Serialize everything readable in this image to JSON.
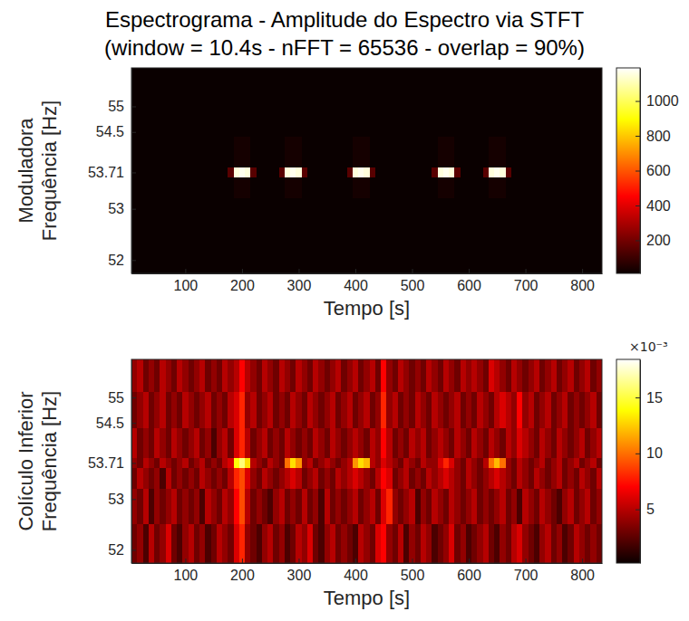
{
  "title": "Espectrograma - Amplitude do Espectro via STFT",
  "subtitle": "(window = 10.4s - nFFT = 65536 - overlap = 90%)",
  "chart_data": [
    {
      "type": "heatmap",
      "color": "hot",
      "ylabel": [
        "Moduladora",
        "Frequência [Hz]"
      ],
      "xlabel": "Tempo [s]",
      "xlim": [
        5,
        835
      ],
      "xticks": [
        100,
        200,
        300,
        400,
        500,
        600,
        700,
        800
      ],
      "ylim": [
        51.74,
        55.75
      ],
      "yticks": [
        52,
        53,
        53.71,
        54.5,
        55
      ],
      "x_edges": [
        5,
        15,
        25,
        35,
        45,
        55,
        65,
        75,
        85,
        95,
        105,
        115,
        125,
        135,
        145,
        155,
        165,
        175,
        185,
        195,
        205,
        215,
        225,
        235,
        245,
        255,
        265,
        275,
        285,
        295,
        305,
        315,
        325,
        335,
        345,
        355,
        365,
        375,
        385,
        395,
        405,
        415,
        425,
        435,
        445,
        455,
        465,
        475,
        485,
        495,
        505,
        515,
        525,
        535,
        545,
        555,
        565,
        575,
        585,
        595,
        605,
        615,
        625,
        635,
        645,
        655,
        665,
        675,
        685,
        695,
        705,
        715,
        725,
        735,
        745,
        755,
        765,
        775,
        785,
        795,
        805,
        815,
        825,
        835
      ],
      "y_edges": [
        51.74,
        52.5,
        53.2,
        53.62,
        53.8,
        54.4,
        55.1,
        55.75
      ],
      "z": [
        [
          0,
          0,
          0,
          0,
          0,
          0,
          0,
          0,
          0,
          0,
          0,
          0,
          0,
          0,
          0,
          0,
          0,
          0,
          0,
          0,
          0,
          0,
          0,
          0,
          0,
          0,
          0,
          0,
          0,
          0,
          0,
          0,
          0,
          0,
          0,
          0,
          0,
          0,
          0,
          0,
          0,
          0,
          0,
          0,
          0,
          0,
          0,
          0,
          0,
          0,
          0,
          0,
          0,
          0,
          0,
          0,
          0,
          0,
          0,
          0,
          0,
          0,
          0,
          0,
          0,
          0,
          0,
          0,
          0,
          0,
          0,
          0,
          0,
          0,
          0,
          0,
          0,
          0,
          0,
          0,
          0,
          0,
          0
        ],
        [
          0,
          0,
          0,
          0,
          0,
          0,
          0,
          0,
          0,
          0,
          0,
          0,
          0,
          0,
          0,
          0,
          0,
          0,
          0,
          0,
          0,
          0,
          0,
          0,
          0,
          0,
          0,
          0,
          0,
          0,
          0,
          0,
          0,
          0,
          0,
          0,
          0,
          0,
          0,
          0,
          0,
          0,
          0,
          0,
          0,
          0,
          0,
          0,
          0,
          0,
          0,
          0,
          0,
          0,
          0,
          0,
          0,
          0,
          0,
          0,
          0,
          0,
          0,
          0,
          0,
          0,
          0,
          0,
          0,
          0,
          0,
          0,
          0,
          0,
          0,
          0,
          0,
          0,
          0,
          0,
          0,
          0,
          0
        ],
        [
          0,
          0,
          0,
          0,
          0,
          0,
          0,
          0,
          0,
          0,
          0,
          0,
          0,
          0,
          0,
          0,
          0,
          0,
          30,
          30,
          30,
          0,
          0,
          0,
          0,
          0,
          0,
          30,
          30,
          30,
          0,
          0,
          0,
          0,
          0,
          0,
          0,
          0,
          0,
          30,
          30,
          30,
          0,
          0,
          0,
          0,
          0,
          0,
          0,
          0,
          0,
          0,
          0,
          0,
          30,
          30,
          30,
          0,
          0,
          0,
          0,
          0,
          0,
          30,
          30,
          30,
          0,
          0,
          0,
          0,
          0,
          0,
          0,
          0,
          0,
          0,
          0,
          0,
          0,
          0,
          0,
          0,
          0
        ],
        [
          0,
          0,
          0,
          0,
          0,
          0,
          0,
          0,
          0,
          0,
          0,
          0,
          0,
          0,
          0,
          0,
          0,
          150,
          1150,
          1170,
          1150,
          150,
          0,
          0,
          0,
          0,
          150,
          1150,
          1170,
          1150,
          150,
          0,
          0,
          0,
          0,
          0,
          0,
          0,
          150,
          1150,
          1170,
          1150,
          150,
          0,
          0,
          0,
          0,
          0,
          0,
          0,
          0,
          0,
          0,
          150,
          1150,
          1170,
          1150,
          150,
          0,
          0,
          0,
          0,
          150,
          1150,
          1170,
          1150,
          150,
          0,
          0,
          0,
          0,
          0,
          0,
          0,
          0,
          0,
          0,
          0,
          0,
          0,
          0,
          0,
          0
        ],
        [
          0,
          0,
          0,
          0,
          0,
          0,
          0,
          0,
          0,
          0,
          0,
          0,
          0,
          0,
          0,
          0,
          0,
          0,
          30,
          30,
          30,
          0,
          0,
          0,
          0,
          0,
          0,
          30,
          30,
          30,
          0,
          0,
          0,
          0,
          0,
          0,
          0,
          0,
          0,
          30,
          30,
          30,
          0,
          0,
          0,
          0,
          0,
          0,
          0,
          0,
          0,
          0,
          0,
          0,
          30,
          30,
          30,
          0,
          0,
          0,
          0,
          0,
          0,
          30,
          30,
          30,
          0,
          0,
          0,
          0,
          0,
          0,
          0,
          0,
          0,
          0,
          0,
          0,
          0,
          0,
          0,
          0,
          0
        ],
        [
          0,
          0,
          0,
          0,
          0,
          0,
          0,
          0,
          0,
          0,
          0,
          0,
          0,
          0,
          0,
          0,
          0,
          0,
          0,
          0,
          0,
          0,
          0,
          0,
          0,
          0,
          0,
          0,
          0,
          0,
          0,
          0,
          0,
          0,
          0,
          0,
          0,
          0,
          0,
          0,
          0,
          0,
          0,
          0,
          0,
          0,
          0,
          0,
          0,
          0,
          0,
          0,
          0,
          0,
          0,
          0,
          0,
          0,
          0,
          0,
          0,
          0,
          0,
          0,
          0,
          0,
          0,
          0,
          0,
          0,
          0,
          0,
          0,
          0,
          0,
          0,
          0,
          0,
          0,
          0,
          0,
          0,
          0
        ],
        [
          0,
          0,
          0,
          0,
          0,
          0,
          0,
          0,
          0,
          0,
          0,
          0,
          0,
          0,
          0,
          0,
          0,
          0,
          0,
          0,
          0,
          0,
          0,
          0,
          0,
          0,
          0,
          0,
          0,
          0,
          0,
          0,
          0,
          0,
          0,
          0,
          0,
          0,
          0,
          0,
          0,
          0,
          0,
          0,
          0,
          0,
          0,
          0,
          0,
          0,
          0,
          0,
          0,
          0,
          0,
          0,
          0,
          0,
          0,
          0,
          0,
          0,
          0,
          0,
          0,
          0,
          0,
          0,
          0,
          0,
          0,
          0,
          0,
          0,
          0,
          0,
          0,
          0,
          0,
          0,
          0,
          0,
          0
        ]
      ],
      "colorbar": {
        "lim": [
          10,
          1190
        ],
        "ticks": [
          200,
          400,
          600,
          800,
          1000
        ]
      }
    },
    {
      "type": "heatmap",
      "color": "hot",
      "ylabel": [
        "Colículo Inferior",
        "Frequência [Hz]"
      ],
      "xlabel": "Tempo [s]",
      "xlim": [
        5,
        835
      ],
      "xticks": [
        100,
        200,
        300,
        400,
        500,
        600,
        700,
        800
      ],
      "ylim": [
        51.74,
        55.75
      ],
      "yticks": [
        52,
        53,
        53.71,
        54.5,
        55
      ],
      "x_edges": [
        5,
        15,
        25,
        35,
        45,
        55,
        65,
        75,
        85,
        95,
        105,
        115,
        125,
        135,
        145,
        155,
        165,
        175,
        185,
        195,
        205,
        215,
        225,
        235,
        245,
        255,
        265,
        275,
        285,
        295,
        305,
        315,
        325,
        335,
        345,
        355,
        365,
        375,
        385,
        395,
        405,
        415,
        425,
        435,
        445,
        455,
        465,
        475,
        485,
        495,
        505,
        515,
        525,
        535,
        545,
        555,
        565,
        575,
        585,
        595,
        605,
        615,
        625,
        635,
        645,
        655,
        665,
        675,
        685,
        695,
        705,
        715,
        725,
        735,
        745,
        755,
        765,
        775,
        785,
        795,
        805,
        815,
        825,
        835
      ],
      "y_edges": [
        51.74,
        52.5,
        53.2,
        53.62,
        53.8,
        54.4,
        55.1,
        55.75
      ],
      "z": [
        [
          3,
          4,
          2,
          5,
          3,
          4,
          6,
          3,
          2,
          4,
          5,
          3,
          4,
          2,
          3,
          5,
          4,
          3,
          6,
          8,
          4,
          3,
          2,
          4,
          5,
          3,
          4,
          2,
          3,
          5,
          4,
          6,
          3,
          2,
          4,
          5,
          3,
          4,
          3,
          2,
          5,
          4,
          3,
          6,
          7,
          4,
          3,
          5,
          2,
          4,
          3,
          5,
          4,
          2,
          3,
          4,
          6,
          3,
          4,
          2,
          3,
          4,
          5,
          3,
          2,
          4,
          3,
          5,
          6,
          4,
          3,
          2,
          4,
          5,
          3,
          4,
          2,
          3,
          5,
          4,
          3,
          4,
          3
        ],
        [
          4,
          3,
          5,
          2,
          4,
          3,
          4,
          5,
          3,
          4,
          3,
          4,
          2,
          5,
          4,
          3,
          5,
          4,
          7,
          9,
          5,
          3,
          4,
          3,
          2,
          4,
          5,
          3,
          4,
          3,
          5,
          3,
          4,
          2,
          5,
          3,
          4,
          3,
          4,
          5,
          3,
          4,
          5,
          3,
          6,
          8,
          4,
          3,
          4,
          5,
          2,
          4,
          3,
          5,
          4,
          3,
          5,
          4,
          3,
          4,
          5,
          3,
          4,
          3,
          4,
          5,
          3,
          4,
          2,
          5,
          4,
          3,
          5,
          4,
          3,
          2,
          4,
          5,
          3,
          4,
          5,
          3,
          4
        ],
        [
          3,
          5,
          4,
          3,
          4,
          2,
          5,
          3,
          4,
          3,
          4,
          3,
          5,
          4,
          3,
          4,
          3,
          5,
          8,
          9,
          6,
          4,
          3,
          5,
          4,
          3,
          4,
          5,
          6,
          5,
          3,
          4,
          5,
          3,
          4,
          3,
          5,
          4,
          5,
          6,
          5,
          4,
          3,
          5,
          7,
          6,
          3,
          4,
          5,
          3,
          4,
          3,
          5,
          4,
          5,
          6,
          5,
          4,
          3,
          5,
          4,
          3,
          4,
          5,
          6,
          5,
          4,
          3,
          5,
          4,
          3,
          5,
          4,
          3,
          4,
          5,
          3,
          4,
          3,
          5,
          4,
          3,
          5
        ],
        [
          4,
          3,
          5,
          4,
          3,
          5,
          4,
          3,
          4,
          5,
          3,
          4,
          5,
          3,
          4,
          3,
          5,
          6,
          14,
          16,
          13,
          5,
          4,
          3,
          5,
          4,
          3,
          10,
          13,
          11,
          4,
          5,
          3,
          4,
          5,
          4,
          3,
          4,
          5,
          11,
          13,
          12,
          5,
          4,
          6,
          5,
          4,
          3,
          5,
          4,
          3,
          5,
          4,
          4,
          6,
          8,
          6,
          4,
          3,
          5,
          4,
          3,
          5,
          10,
          12,
          10,
          4,
          3,
          5,
          4,
          3,
          4,
          5,
          3,
          4,
          5,
          3,
          4,
          5,
          3,
          4,
          5,
          3
        ],
        [
          5,
          3,
          4,
          3,
          5,
          4,
          3,
          5,
          4,
          3,
          4,
          5,
          3,
          4,
          2,
          4,
          5,
          3,
          6,
          8,
          5,
          3,
          4,
          5,
          3,
          4,
          3,
          5,
          4,
          3,
          4,
          3,
          5,
          4,
          3,
          5,
          4,
          3,
          4,
          5,
          4,
          3,
          5,
          4,
          7,
          5,
          3,
          4,
          3,
          5,
          4,
          5,
          3,
          4,
          5,
          4,
          3,
          5,
          4,
          3,
          5,
          4,
          3,
          5,
          4,
          3,
          5,
          4,
          6,
          5,
          4,
          3,
          5,
          4,
          3,
          5,
          4,
          3,
          4,
          5,
          3,
          4,
          5
        ],
        [
          3,
          4,
          5,
          3,
          4,
          5,
          3,
          4,
          3,
          5,
          4,
          3,
          4,
          5,
          3,
          4,
          3,
          5,
          6,
          8,
          4,
          5,
          3,
          4,
          5,
          3,
          4,
          3,
          5,
          4,
          3,
          5,
          4,
          3,
          4,
          5,
          3,
          4,
          5,
          3,
          4,
          5,
          3,
          4,
          8,
          4,
          5,
          3,
          4,
          3,
          5,
          4,
          3,
          5,
          4,
          3,
          4,
          5,
          3,
          4,
          3,
          5,
          4,
          3,
          5,
          6,
          5,
          4,
          7,
          4,
          5,
          3,
          4,
          5,
          3,
          4,
          5,
          3,
          4,
          3,
          4,
          5,
          3
        ],
        [
          4,
          5,
          3,
          4,
          3,
          5,
          4,
          3,
          5,
          4,
          3,
          4,
          5,
          3,
          4,
          3,
          5,
          4,
          5,
          7,
          5,
          4,
          3,
          5,
          4,
          3,
          5,
          4,
          3,
          5,
          4,
          3,
          5,
          4,
          3,
          4,
          5,
          3,
          4,
          5,
          3,
          4,
          5,
          3,
          7,
          4,
          3,
          5,
          4,
          3,
          4,
          3,
          5,
          4,
          3,
          5,
          4,
          3,
          5,
          4,
          5,
          4,
          3,
          6,
          5,
          4,
          3,
          5,
          4,
          3,
          4,
          5,
          3,
          4,
          5,
          3,
          4,
          5,
          3,
          4,
          5,
          3,
          4
        ]
      ],
      "colorbar": {
        "lim": [
          0.2,
          18.4
        ],
        "ticks": [
          5,
          10,
          15
        ],
        "exponent_label": "×10⁻³"
      }
    }
  ]
}
